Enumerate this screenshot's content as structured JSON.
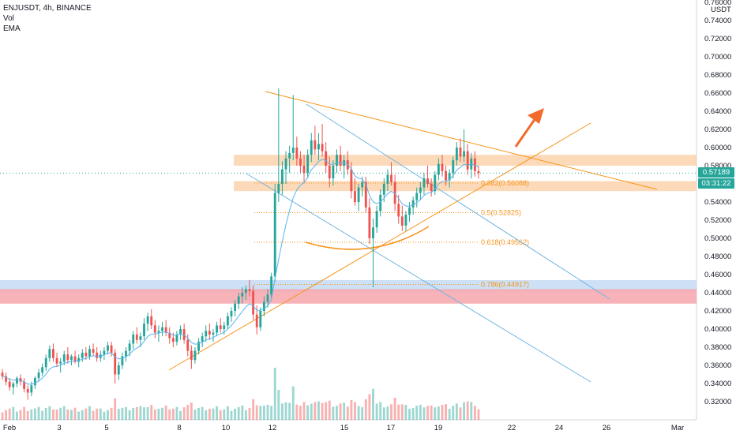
{
  "header": {
    "symbol_line": "ENJUSDT, 4h, BINANCE",
    "vol_label": "Vol",
    "ema_label": "EMA"
  },
  "price_axis": {
    "currency": "USDT"
  },
  "price_tags": {
    "last_price": "0.57189",
    "countdown": "03:31:22"
  },
  "colors": {
    "up": "#26a69a",
    "down": "#ef5350",
    "ema": "#5ab4f0",
    "orange": "#f7931a",
    "blue_line": "#6fb3e0",
    "zone_orange": "#fbd3ad",
    "zone_blue": "#c4daf3",
    "zone_red": "#f7a6ad"
  },
  "chart_data": {
    "type": "candlestick",
    "title": "ENJUSDT, 4h, BINANCE",
    "y_ticks": [
      "0.76000",
      "0.74000",
      "0.72000",
      "0.70000",
      "0.68000",
      "0.66000",
      "0.64000",
      "0.62000",
      "0.60000",
      "0.58000",
      "0.56000",
      "0.54000",
      "0.52000",
      "0.50000",
      "0.48000",
      "0.46000",
      "0.44000",
      "0.42000",
      "0.40000",
      "0.38000",
      "0.36000",
      "0.34000",
      "0.32000"
    ],
    "y_range": [
      0.31,
      0.765
    ],
    "x_ticks": [
      "Feb",
      "3",
      "5",
      "8",
      "10",
      "12",
      "15",
      "17",
      "19",
      "22",
      "24",
      "26",
      "Mar"
    ],
    "last_price": 0.57189,
    "fib_levels": [
      {
        "label": "0.382(0.56088)",
        "value": 0.56088
      },
      {
        "label": "0.5(0.52825)",
        "value": 0.52825
      },
      {
        "label": "0.618(0.49562)",
        "value": 0.49562
      },
      {
        "label": "0.786(0.44917)",
        "value": 0.44917
      }
    ],
    "zones": [
      {
        "name": "resistance",
        "from": 0.58,
        "to": 0.592,
        "color": "orange"
      },
      {
        "name": "support",
        "from": 0.552,
        "to": 0.563,
        "color": "orange"
      },
      {
        "name": "blue-zone",
        "from": 0.441,
        "to": 0.454,
        "color": "blue"
      },
      {
        "name": "red-zone",
        "from": 0.428,
        "to": 0.444,
        "color": "red"
      }
    ],
    "candles": [
      [
        0.352,
        0.356,
        0.344,
        0.348
      ],
      [
        0.348,
        0.352,
        0.338,
        0.342
      ],
      [
        0.342,
        0.346,
        0.332,
        0.336
      ],
      [
        0.336,
        0.342,
        0.328,
        0.34
      ],
      [
        0.34,
        0.348,
        0.336,
        0.346
      ],
      [
        0.346,
        0.35,
        0.338,
        0.342
      ],
      [
        0.342,
        0.346,
        0.33,
        0.334
      ],
      [
        0.334,
        0.338,
        0.322,
        0.33
      ],
      [
        0.33,
        0.342,
        0.326,
        0.338
      ],
      [
        0.338,
        0.348,
        0.334,
        0.346
      ],
      [
        0.346,
        0.356,
        0.342,
        0.352
      ],
      [
        0.352,
        0.362,
        0.348,
        0.358
      ],
      [
        0.358,
        0.372,
        0.354,
        0.368
      ],
      [
        0.368,
        0.382,
        0.364,
        0.378
      ],
      [
        0.378,
        0.384,
        0.364,
        0.368
      ],
      [
        0.368,
        0.374,
        0.358,
        0.362
      ],
      [
        0.362,
        0.368,
        0.352,
        0.364
      ],
      [
        0.364,
        0.376,
        0.36,
        0.372
      ],
      [
        0.372,
        0.38,
        0.362,
        0.366
      ],
      [
        0.366,
        0.372,
        0.36,
        0.37
      ],
      [
        0.37,
        0.376,
        0.362,
        0.364
      ],
      [
        0.364,
        0.372,
        0.358,
        0.368
      ],
      [
        0.368,
        0.378,
        0.364,
        0.374
      ],
      [
        0.374,
        0.38,
        0.366,
        0.37
      ],
      [
        0.37,
        0.382,
        0.366,
        0.378
      ],
      [
        0.378,
        0.384,
        0.37,
        0.374
      ],
      [
        0.374,
        0.38,
        0.364,
        0.368
      ],
      [
        0.368,
        0.376,
        0.364,
        0.372
      ],
      [
        0.372,
        0.38,
        0.366,
        0.376
      ],
      [
        0.376,
        0.386,
        0.372,
        0.382
      ],
      [
        0.382,
        0.386,
        0.37,
        0.374
      ],
      [
        0.374,
        0.378,
        0.34,
        0.35
      ],
      [
        0.35,
        0.364,
        0.344,
        0.36
      ],
      [
        0.36,
        0.374,
        0.356,
        0.37
      ],
      [
        0.37,
        0.38,
        0.364,
        0.376
      ],
      [
        0.376,
        0.388,
        0.37,
        0.384
      ],
      [
        0.384,
        0.398,
        0.378,
        0.394
      ],
      [
        0.394,
        0.402,
        0.384,
        0.388
      ],
      [
        0.388,
        0.396,
        0.38,
        0.392
      ],
      [
        0.392,
        0.412,
        0.388,
        0.406
      ],
      [
        0.406,
        0.418,
        0.398,
        0.414
      ],
      [
        0.414,
        0.422,
        0.4,
        0.404
      ],
      [
        0.404,
        0.41,
        0.39,
        0.396
      ],
      [
        0.396,
        0.404,
        0.386,
        0.398
      ],
      [
        0.398,
        0.408,
        0.392,
        0.402
      ],
      [
        0.402,
        0.41,
        0.392,
        0.396
      ],
      [
        0.396,
        0.402,
        0.384,
        0.39
      ],
      [
        0.39,
        0.396,
        0.38,
        0.386
      ],
      [
        0.386,
        0.398,
        0.382,
        0.394
      ],
      [
        0.394,
        0.404,
        0.388,
        0.4
      ],
      [
        0.4,
        0.406,
        0.384,
        0.388
      ],
      [
        0.388,
        0.394,
        0.37,
        0.376
      ],
      [
        0.376,
        0.382,
        0.356,
        0.366
      ],
      [
        0.366,
        0.38,
        0.362,
        0.376
      ],
      [
        0.376,
        0.39,
        0.372,
        0.386
      ],
      [
        0.386,
        0.396,
        0.38,
        0.392
      ],
      [
        0.392,
        0.404,
        0.386,
        0.398
      ],
      [
        0.398,
        0.406,
        0.388,
        0.394
      ],
      [
        0.394,
        0.4,
        0.386,
        0.396
      ],
      [
        0.396,
        0.408,
        0.392,
        0.404
      ],
      [
        0.404,
        0.412,
        0.396,
        0.4
      ],
      [
        0.4,
        0.408,
        0.394,
        0.404
      ],
      [
        0.404,
        0.418,
        0.4,
        0.414
      ],
      [
        0.414,
        0.424,
        0.408,
        0.42
      ],
      [
        0.42,
        0.432,
        0.414,
        0.428
      ],
      [
        0.428,
        0.44,
        0.422,
        0.436
      ],
      [
        0.436,
        0.446,
        0.428,
        0.44
      ],
      [
        0.44,
        0.448,
        0.432,
        0.444
      ],
      [
        0.444,
        0.454,
        0.436,
        0.442
      ],
      [
        0.442,
        0.448,
        0.41,
        0.416
      ],
      [
        0.416,
        0.426,
        0.394,
        0.402
      ],
      [
        0.402,
        0.424,
        0.398,
        0.42
      ],
      [
        0.42,
        0.436,
        0.414,
        0.43
      ],
      [
        0.43,
        0.444,
        0.424,
        0.438
      ],
      [
        0.438,
        0.462,
        0.434,
        0.458
      ],
      [
        0.458,
        0.56,
        0.452,
        0.55
      ],
      [
        0.55,
        0.665,
        0.54,
        0.56
      ],
      [
        0.56,
        0.585,
        0.548,
        0.576
      ],
      [
        0.576,
        0.596,
        0.56,
        0.588
      ],
      [
        0.588,
        0.602,
        0.572,
        0.594
      ],
      [
        0.594,
        0.658,
        0.586,
        0.6
      ],
      [
        0.6,
        0.612,
        0.58,
        0.588
      ],
      [
        0.588,
        0.596,
        0.572,
        0.58
      ],
      [
        0.58,
        0.592,
        0.562,
        0.572
      ],
      [
        0.572,
        0.598,
        0.566,
        0.592
      ],
      [
        0.592,
        0.616,
        0.584,
        0.608
      ],
      [
        0.608,
        0.624,
        0.592,
        0.598
      ],
      [
        0.598,
        0.616,
        0.586,
        0.604
      ],
      [
        0.604,
        0.626,
        0.59,
        0.596
      ],
      [
        0.596,
        0.606,
        0.572,
        0.58
      ],
      [
        0.58,
        0.59,
        0.556,
        0.566
      ],
      [
        0.566,
        0.586,
        0.558,
        0.58
      ],
      [
        0.58,
        0.598,
        0.572,
        0.592
      ],
      [
        0.592,
        0.602,
        0.574,
        0.58
      ],
      [
        0.58,
        0.592,
        0.566,
        0.586
      ],
      [
        0.586,
        0.596,
        0.57,
        0.576
      ],
      [
        0.576,
        0.584,
        0.544,
        0.552
      ],
      [
        0.552,
        0.566,
        0.536,
        0.54
      ],
      [
        0.54,
        0.56,
        0.53,
        0.556
      ],
      [
        0.556,
        0.568,
        0.546,
        0.562
      ],
      [
        0.562,
        0.568,
        0.528,
        0.534
      ],
      [
        0.534,
        0.544,
        0.494,
        0.5
      ],
      [
        0.5,
        0.522,
        0.446,
        0.512
      ],
      [
        0.512,
        0.536,
        0.506,
        0.53
      ],
      [
        0.53,
        0.554,
        0.524,
        0.548
      ],
      [
        0.548,
        0.566,
        0.54,
        0.56
      ],
      [
        0.56,
        0.576,
        0.552,
        0.57
      ],
      [
        0.57,
        0.584,
        0.558,
        0.562
      ],
      [
        0.562,
        0.57,
        0.53,
        0.538
      ],
      [
        0.538,
        0.548,
        0.516,
        0.524
      ],
      [
        0.524,
        0.536,
        0.508,
        0.514
      ],
      [
        0.514,
        0.53,
        0.508,
        0.526
      ],
      [
        0.526,
        0.54,
        0.518,
        0.534
      ],
      [
        0.534,
        0.546,
        0.526,
        0.542
      ],
      [
        0.542,
        0.556,
        0.534,
        0.55
      ],
      [
        0.55,
        0.562,
        0.542,
        0.556
      ],
      [
        0.556,
        0.572,
        0.548,
        0.566
      ],
      [
        0.566,
        0.58,
        0.556,
        0.56
      ],
      [
        0.56,
        0.566,
        0.546,
        0.552
      ],
      [
        0.552,
        0.574,
        0.548,
        0.57
      ],
      [
        0.57,
        0.588,
        0.564,
        0.582
      ],
      [
        0.582,
        0.592,
        0.568,
        0.574
      ],
      [
        0.574,
        0.58,
        0.558,
        0.564
      ],
      [
        0.564,
        0.576,
        0.556,
        0.572
      ],
      [
        0.572,
        0.59,
        0.566,
        0.586
      ],
      [
        0.586,
        0.606,
        0.58,
        0.6
      ],
      [
        0.6,
        0.61,
        0.584,
        0.59
      ],
      [
        0.59,
        0.62,
        0.584,
        0.596
      ],
      [
        0.596,
        0.604,
        0.57,
        0.576
      ],
      [
        0.576,
        0.594,
        0.566,
        0.588
      ],
      [
        0.588,
        0.596,
        0.568,
        0.574
      ],
      [
        0.574,
        0.58,
        0.566,
        0.572
      ]
    ]
  }
}
